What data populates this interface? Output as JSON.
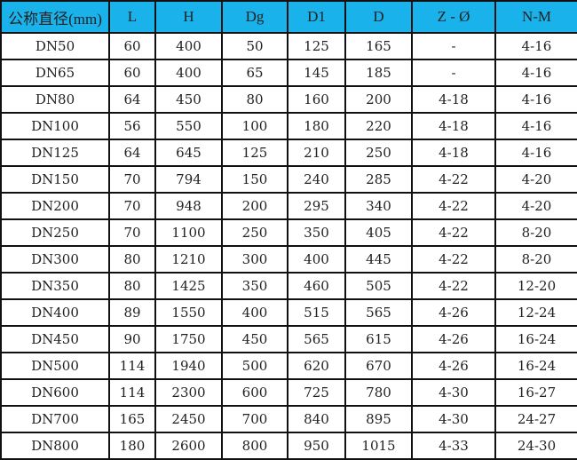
{
  "table": {
    "header_color": "#1ab2ea",
    "columns": [
      "公称直径(mm)",
      "L",
      "H",
      "Dg",
      "D1",
      "D",
      "Z - Ø",
      "N-M"
    ],
    "rows": [
      [
        "DN50",
        "60",
        "400",
        "50",
        "125",
        "165",
        "-",
        "4-16"
      ],
      [
        "DN65",
        "60",
        "400",
        "65",
        "145",
        "185",
        "-",
        "4-16"
      ],
      [
        "DN80",
        "64",
        "450",
        "80",
        "160",
        "200",
        "4-18",
        "4-16"
      ],
      [
        "DN100",
        "56",
        "550",
        "100",
        "180",
        "220",
        "4-18",
        "4-16"
      ],
      [
        "DN125",
        "64",
        "645",
        "125",
        "210",
        "250",
        "4-18",
        "4-16"
      ],
      [
        "DN150",
        "70",
        "794",
        "150",
        "240",
        "285",
        "4-22",
        "4-20"
      ],
      [
        "DN200",
        "70",
        "948",
        "200",
        "295",
        "340",
        "4-22",
        "4-20"
      ],
      [
        "DN250",
        "70",
        "1100",
        "250",
        "350",
        "405",
        "4-22",
        "8-20"
      ],
      [
        "DN300",
        "80",
        "1210",
        "300",
        "400",
        "445",
        "4-22",
        "8-20"
      ],
      [
        "DN350",
        "80",
        "1425",
        "350",
        "460",
        "505",
        "4-22",
        "12-20"
      ],
      [
        "DN400",
        "89",
        "1550",
        "400",
        "515",
        "565",
        "4-26",
        "12-24"
      ],
      [
        "DN450",
        "90",
        "1750",
        "450",
        "565",
        "615",
        "4-26",
        "16-24"
      ],
      [
        "DN500",
        "114",
        "1940",
        "500",
        "620",
        "670",
        "4-26",
        "16-24"
      ],
      [
        "DN600",
        "114",
        "2300",
        "600",
        "725",
        "780",
        "4-30",
        "16-27"
      ],
      [
        "DN700",
        "165",
        "2450",
        "700",
        "840",
        "895",
        "4-30",
        "24-27"
      ],
      [
        "DN800",
        "180",
        "2600",
        "800",
        "950",
        "1015",
        "4-33",
        "24-30"
      ]
    ]
  }
}
